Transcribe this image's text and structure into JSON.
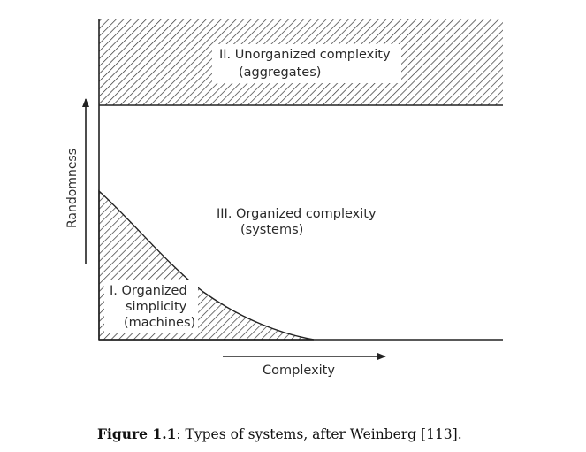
{
  "regions": {
    "unorganized_complexity": {
      "line1": "II. Unorganized complexity",
      "line2": "(aggregates)"
    },
    "organized_complexity": {
      "line1": "III. Organized complexity",
      "line2": "(systems)"
    },
    "organized_simplicity": {
      "line1": "I. Organized",
      "line2": "simplicity",
      "line3": "(machines)"
    }
  },
  "axes": {
    "y_label": "Randomness",
    "x_label": "Complexity"
  },
  "caption": {
    "figure_number": "Figure 1.1",
    "text": ": Types of systems, after Weinberg [113]."
  }
}
